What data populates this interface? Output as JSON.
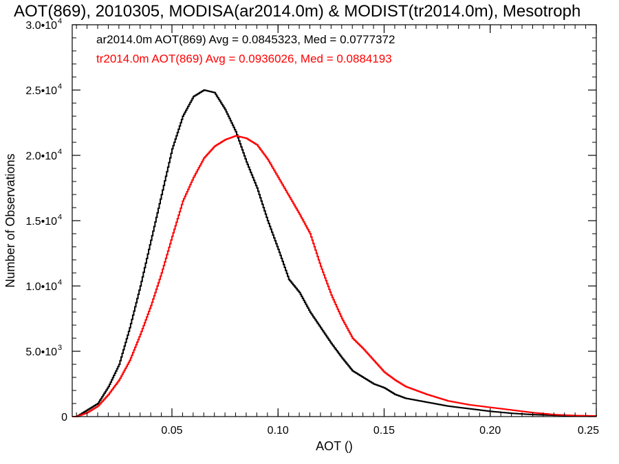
{
  "chart_data": {
    "type": "line",
    "title": "AOT(869), 2010305, MODISA(ar2014.0m) & MODIST(tr2014.0m), Mesotroph",
    "xlabel": "AOT ()",
    "ylabel": "Number of Observations",
    "xlim": [
      0.003,
      0.25
    ],
    "ylim": [
      0,
      30000
    ],
    "x_ticks": [
      "0.05",
      "0.10",
      "0.15",
      "0.20",
      "0.25"
    ],
    "y_ticks": [
      {
        "value": 0,
        "mantissa": "0",
        "exp": ""
      },
      {
        "value": 5000,
        "mantissa": "5.0•10",
        "exp": "3"
      },
      {
        "value": 10000,
        "mantissa": "1.0•10",
        "exp": "4"
      },
      {
        "value": 15000,
        "mantissa": "1.5•10",
        "exp": "4"
      },
      {
        "value": 20000,
        "mantissa": "2.0•10",
        "exp": "4"
      },
      {
        "value": 25000,
        "mantissa": "2.5•10",
        "exp": "4"
      },
      {
        "value": 30000,
        "mantissa": "3.0•10",
        "exp": "4"
      }
    ],
    "grid": false,
    "legend_position": "top-left",
    "annotations": [
      {
        "text": "ar2014.0m AOT(869) Avg = 0.0845323, Med = 0.0777372",
        "color": "#000000"
      },
      {
        "text": "tr2014.0m AOT(869) Avg = 0.0936026, Med = 0.0884193",
        "color": "#ff0000"
      }
    ],
    "series": [
      {
        "color": "#000000",
        "x": [
          0.003,
          0.005,
          0.01,
          0.015,
          0.02,
          0.025,
          0.03,
          0.035,
          0.04,
          0.045,
          0.05,
          0.055,
          0.06,
          0.065,
          0.07,
          0.075,
          0.08,
          0.085,
          0.09,
          0.095,
          0.1,
          0.105,
          0.11,
          0.115,
          0.12,
          0.125,
          0.13,
          0.135,
          0.14,
          0.145,
          0.15,
          0.155,
          0.16,
          0.17,
          0.18,
          0.19,
          0.2,
          0.21,
          0.22,
          0.23,
          0.24,
          0.25
        ],
        "y": [
          0,
          0,
          500,
          1000,
          2300,
          4000,
          6800,
          10000,
          13500,
          17000,
          20500,
          23000,
          24500,
          25000,
          24800,
          23500,
          21800,
          19500,
          17500,
          15000,
          12800,
          10500,
          9500,
          8000,
          6800,
          5600,
          4500,
          3500,
          3000,
          2500,
          2200,
          1700,
          1400,
          1100,
          800,
          600,
          400,
          250,
          150,
          100,
          50,
          30
        ]
      },
      {
        "color": "#ff0000",
        "x": [
          0.003,
          0.005,
          0.01,
          0.015,
          0.02,
          0.025,
          0.03,
          0.035,
          0.04,
          0.045,
          0.05,
          0.055,
          0.06,
          0.065,
          0.07,
          0.075,
          0.08,
          0.085,
          0.09,
          0.095,
          0.1,
          0.105,
          0.11,
          0.115,
          0.12,
          0.125,
          0.13,
          0.135,
          0.14,
          0.145,
          0.15,
          0.155,
          0.16,
          0.17,
          0.18,
          0.19,
          0.2,
          0.21,
          0.22,
          0.23,
          0.24,
          0.25
        ],
        "y": [
          0,
          0,
          300,
          800,
          1700,
          2800,
          4300,
          6300,
          8500,
          11000,
          13800,
          16500,
          18300,
          19800,
          20700,
          21200,
          21500,
          21300,
          20800,
          19700,
          18300,
          16900,
          15500,
          14000,
          11500,
          9300,
          7500,
          6000,
          5200,
          4300,
          3400,
          2800,
          2300,
          1700,
          1200,
          900,
          700,
          500,
          300,
          150,
          80,
          50
        ]
      }
    ]
  }
}
